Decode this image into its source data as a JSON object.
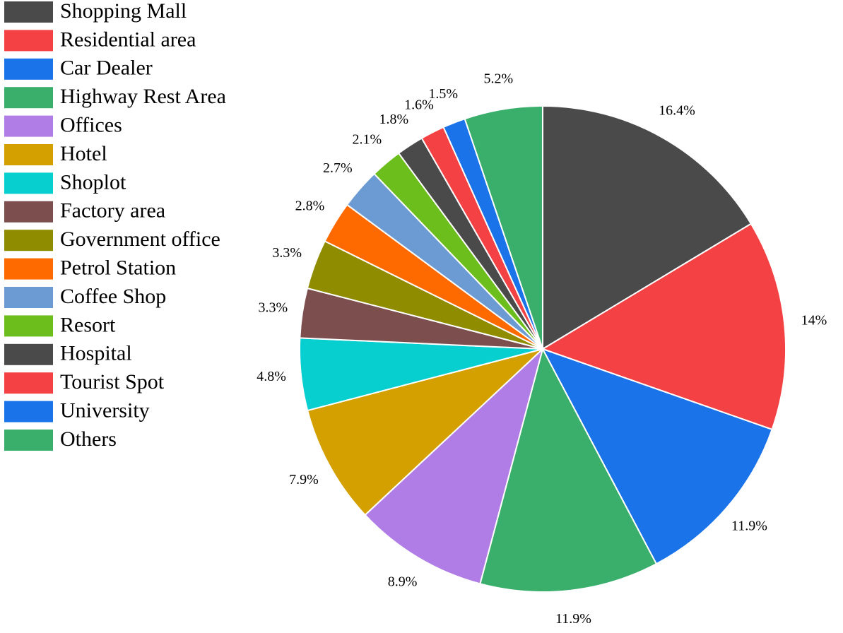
{
  "chart_data": {
    "type": "pie",
    "title": "",
    "legend_position": "left",
    "slice_labels": "percent-outside",
    "categories": [
      "Shopping Mall",
      "Residential area",
      "Car Dealer",
      "Highway Rest Area",
      "Offices",
      "Hotel",
      "Shoplot",
      "Factory area",
      "Government office",
      "Petrol Station",
      "Coffee Shop",
      "Resort",
      "Hospital",
      "Tourist Spot",
      "University",
      "Others"
    ],
    "values": [
      16.4,
      14,
      11.9,
      11.9,
      8.9,
      7.9,
      4.8,
      3.3,
      3.3,
      2.8,
      2.7,
      2.1,
      1.8,
      1.6,
      1.5,
      5.2
    ],
    "labels": [
      "16.4%",
      "14%",
      "11.9%",
      "11.9%",
      "8.9%",
      "7.9%",
      "4.8%",
      "3.3%",
      "3.3%",
      "2.8%",
      "2.7%",
      "2.1%",
      "1.8%",
      "1.6%",
      "1.5%",
      "5.2%"
    ],
    "colors": [
      "#4a4a4a",
      "#f44144",
      "#1a73e8",
      "#3aaf6c",
      "#b07ce6",
      "#d4a000",
      "#08cfcf",
      "#7d4e4e",
      "#8f8c00",
      "#ff6a00",
      "#6b9bd2",
      "#6bbe1b",
      "#4a4a4a",
      "#f44144",
      "#1a73e8",
      "#3aaf6c"
    ]
  }
}
